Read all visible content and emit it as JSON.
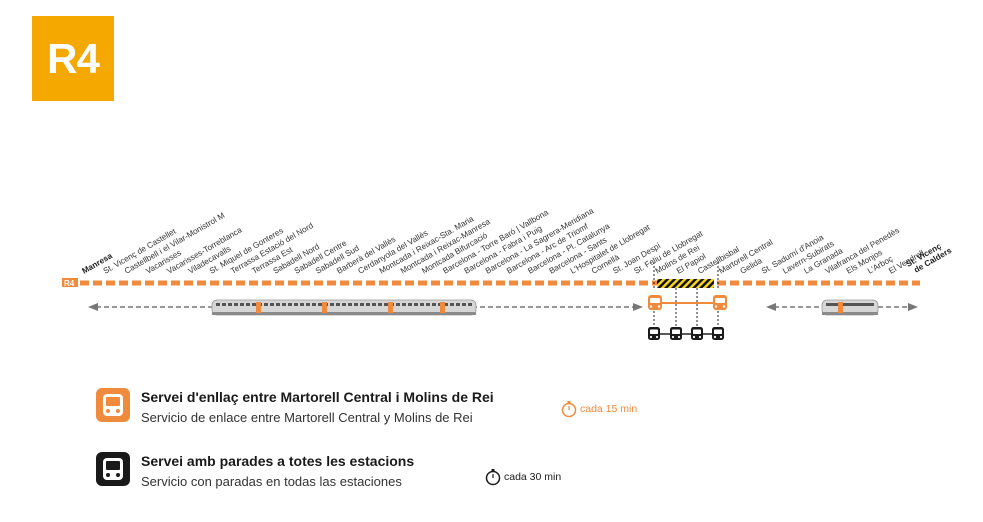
{
  "line": {
    "badge": "R4",
    "track_tag": "R4",
    "stations": [
      "Manresa",
      "St. Vicenç de Castellet",
      "Castellbell i el Vilar-Monistrol M",
      "Vacarisses",
      "Vacarisses-Torreblanca",
      "Viladecavalls",
      "St. Miquel de Gonteres",
      "Terrassa Estació del Nord",
      "Terrassa Est",
      "Sabadell Nord",
      "Sabadell Centre",
      "Sabadell Sud",
      "Barberà del Vallès",
      "Cerdanyola del Vallès",
      "Montcada i Reixac-Sta. Maria",
      "Montcada i Reixac-Manresa",
      "Montcada Bifurcació",
      "Barcelona - Torre Baró | Vallbona",
      "Barcelona - Fabra i Puig",
      "Barcelona - La Sagrera-Meridiana",
      "Barcelona - Arc de Triomf",
      "Barcelona - Pl. Catalunya",
      "Barcelona - Sants",
      "L'Hospitalet de Llobregat",
      "Cornellà",
      "St. Joan Despí",
      "St. Feliu de Llobregat",
      "Molins de Rei",
      "El Papiol",
      "Castellbisbal",
      "Martorell Central",
      "Gelida",
      "St. Sadurní d'Anoia",
      "Lavern-Subirats",
      "La Granada",
      "Vilafranca del Penedès",
      "Els Monjos",
      "L'Arboç",
      "El Vendrell",
      "St. Vicenç de Calders"
    ],
    "bold_stations": [
      "Manresa",
      "St. Vicenç de Calders"
    ],
    "last_station_lines": [
      "St. Vicenç",
      "de Calders"
    ]
  },
  "legend": {
    "bus_link": {
      "title": "Servei d'enllaç entre Martorell Central i Molins de Rei",
      "subtitle": "Servicio de enlace entre Martorell Central y Molins de Rei",
      "frequency": "cada 15 min",
      "icon": "bus-icon",
      "color": "#f08a3c"
    },
    "bus_all_stops": {
      "title": "Servei amb parades a totes les estacions",
      "subtitle": "Servicio con paradas en todas las estaciones",
      "frequency": "cada 30 min",
      "icon": "bus-icon",
      "color": "#1a1a1a"
    }
  },
  "colors": {
    "badge": "#f5a800",
    "line": "#f08a3c",
    "arrow": "#777777",
    "hazard_yellow": "#f7d51d",
    "hazard_black": "#111111",
    "train_body": "#d6d6d6",
    "train_window": "#555555"
  }
}
